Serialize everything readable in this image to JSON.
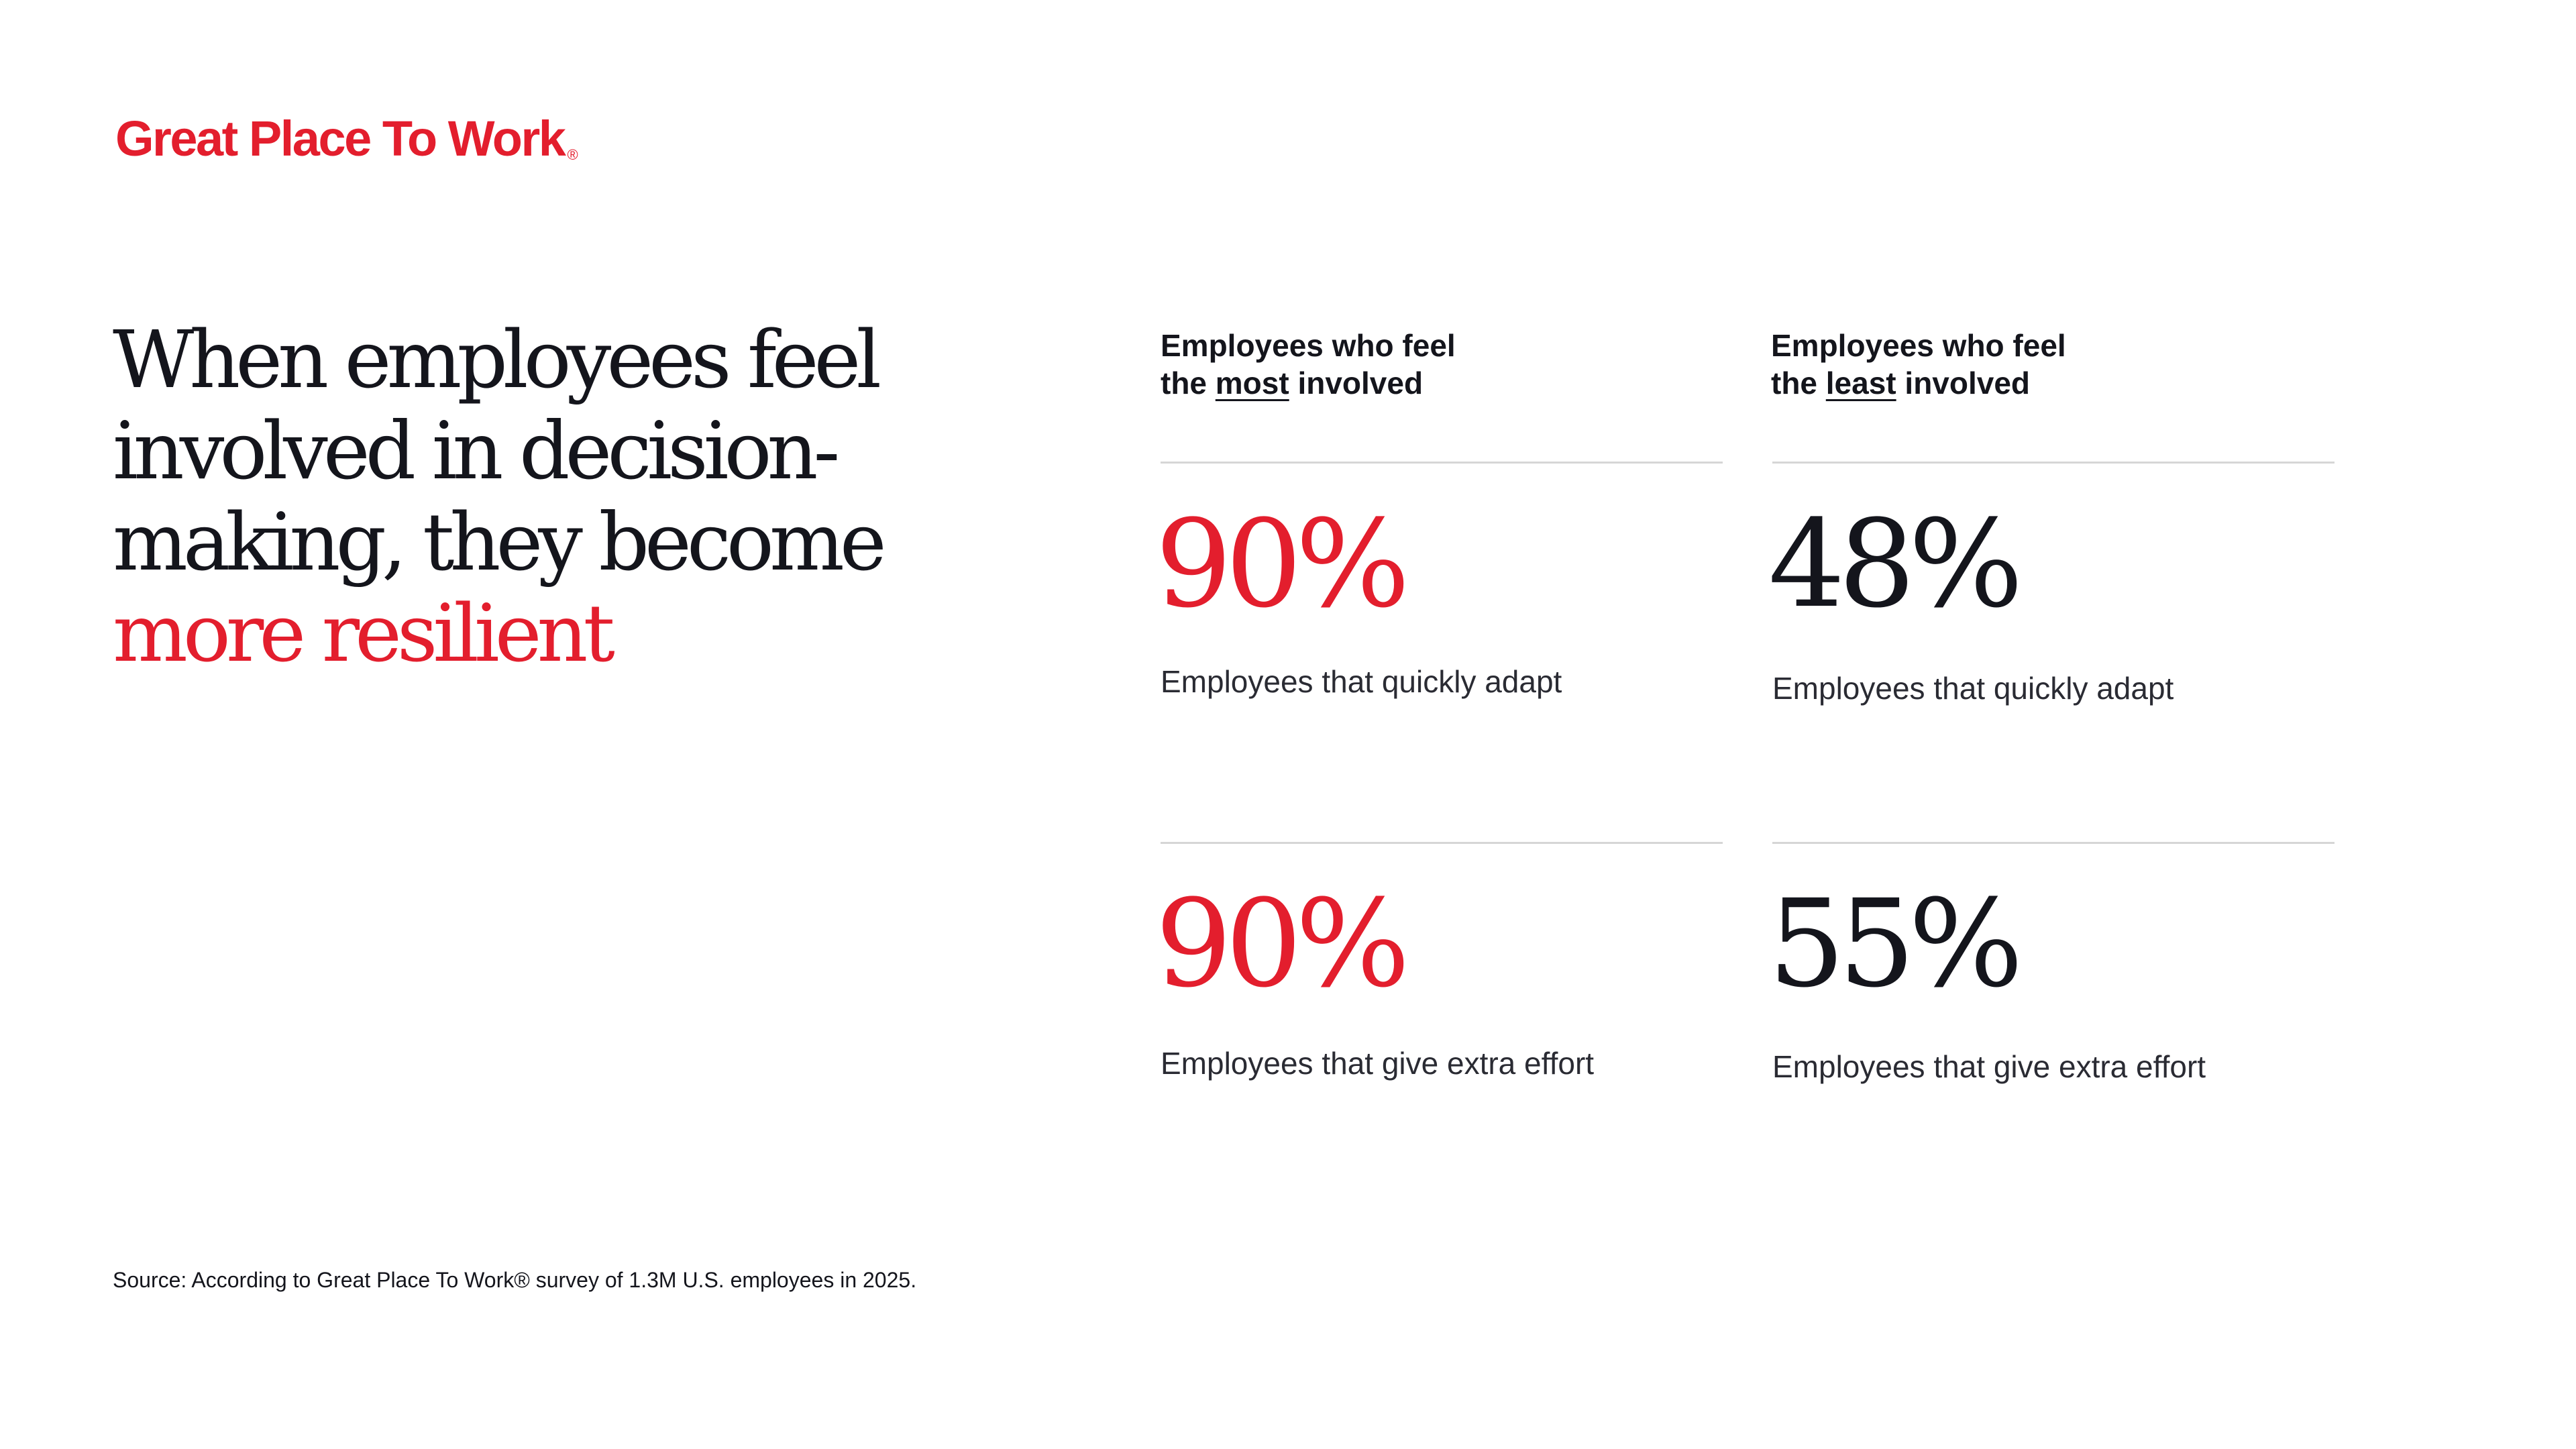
{
  "brand": {
    "logo_text": "Great Place To Work",
    "logo_mark": "®",
    "accent_color": "#e31e2d",
    "text_color": "#14151c"
  },
  "headline": {
    "main": "When employees feel involved in decision-making, they become",
    "accent": "more resilient"
  },
  "columns": [
    {
      "head_line1": "Employees who feel",
      "head_pre": "the ",
      "head_emphasis": "most",
      "head_post": " involved",
      "stats": [
        {
          "value": "90%",
          "label": "Employees that quickly adapt"
        },
        {
          "value": "90%",
          "label": "Employees that give extra effort"
        }
      ]
    },
    {
      "head_line1": "Employees who feel",
      "head_pre": "the ",
      "head_emphasis": "least",
      "head_post": " involved",
      "stats": [
        {
          "value": "48%",
          "label": "Employees that quickly adapt"
        },
        {
          "value": "55%",
          "label": "Employees that give extra effort"
        }
      ]
    }
  ],
  "source": "Source: According to Great Place To Work® survey of 1.3M U.S. employees in 2025."
}
